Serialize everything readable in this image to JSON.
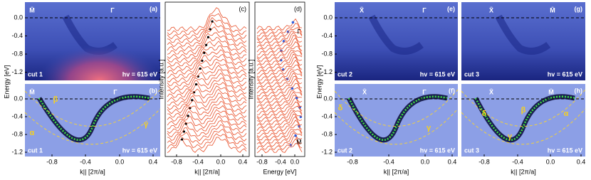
{
  "energy_axis_label": "Energy [eV]",
  "panels": {
    "a": {
      "tag": "(a)",
      "points": [
        "M̄",
        "Γ"
      ],
      "cut": "cut 1",
      "hv": "hv = 615 eV",
      "yticks": [
        "0.0",
        "-0.4",
        "-0.8",
        "-1.2"
      ]
    },
    "b": {
      "tag": "(b)",
      "points": [
        "M̄",
        "Γ"
      ],
      "bands": [
        "β",
        "α",
        "γ"
      ],
      "cut": "cut 1",
      "hv": "hv = 615 eV",
      "yticks": [
        "0.0",
        "-0.4",
        "-0.8",
        "-1.2"
      ],
      "xticks": [
        "-0.8",
        "-0.4",
        "0.0",
        "0.4"
      ],
      "xlabel": "k|| [2π/a]"
    },
    "c": {
      "tag": "(c)",
      "ylabel": "Intensity [a.u.]",
      "xticks": [
        "-0.8",
        "-0.4",
        "0.0",
        "0.4"
      ],
      "xlabel": "k|| [2π/a]"
    },
    "d": {
      "tag": "(d)",
      "ylabel": "Intensity [a.u.]",
      "points": [
        "Γ",
        "M̄"
      ],
      "xticks": [
        "-0.8",
        "-0.4",
        "0.0"
      ],
      "xlabel": "Energy [eV]"
    },
    "e": {
      "tag": "(e)",
      "points": [
        "X̄",
        "Γ"
      ],
      "cut": "cut 2",
      "hv": "hv = 615 eV",
      "yticks": [
        "0.0",
        "-0.4",
        "-0.8",
        "-1.2"
      ]
    },
    "f": {
      "tag": "(f)",
      "points": [
        "X̄",
        "Γ"
      ],
      "bands": [
        "δ",
        "γ"
      ],
      "cut": "cut 2",
      "hv": "hv = 615 eV",
      "yticks": [
        "0.0",
        "-0.4",
        "-0.8",
        "-1.2"
      ],
      "xticks": [
        "-0.8",
        "-0.4",
        "0.0",
        "0.4"
      ],
      "xlabel": "k|| [2π/a]"
    },
    "g": {
      "tag": "(g)",
      "points": [
        "X̄",
        "M̄"
      ],
      "cut": "cut 3",
      "hv": "hv = 615 eV"
    },
    "h": {
      "tag": "(h)",
      "points": [
        "X̄",
        "M̄"
      ],
      "bands": [
        "δ",
        "β",
        "α",
        "γ"
      ],
      "cut": "cut 3",
      "hv": "hv = 615 eV",
      "xticks": [
        "-0.8",
        "-0.4",
        "0.0",
        "0.4"
      ],
      "xlabel": "k|| [2π/a]"
    }
  }
}
